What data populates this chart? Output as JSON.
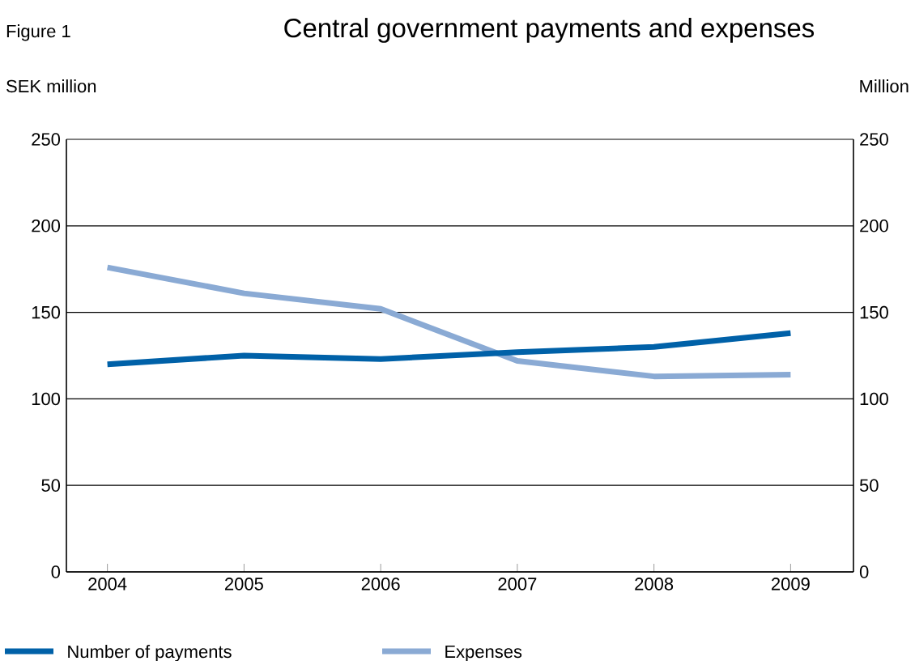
{
  "chart_data": {
    "type": "line",
    "title": "Central government payments and expenses",
    "annotations": [
      "Figure 1"
    ],
    "ylabel": "SEK million",
    "y2label": "Million",
    "categories": [
      "2004",
      "2005",
      "2006",
      "2007",
      "2008",
      "2009"
    ],
    "series": [
      {
        "name": "Number of payments",
        "color": "#0061a8",
        "values": [
          120,
          125,
          123,
          127,
          130,
          138
        ],
        "axis": "y2"
      },
      {
        "name": "Expenses",
        "color": "#8aaad4",
        "values": [
          176,
          161,
          152,
          122,
          113,
          114
        ]
      }
    ],
    "ylim": [
      0,
      250
    ],
    "yticks": [
      0,
      50,
      100,
      150,
      200,
      250
    ],
    "y2lim": [
      0,
      250
    ],
    "y2ticks": [
      0,
      50,
      100,
      150,
      200,
      250
    ],
    "grid": "y",
    "legend": "bottom",
    "marker": "none",
    "line_style": "solid"
  }
}
